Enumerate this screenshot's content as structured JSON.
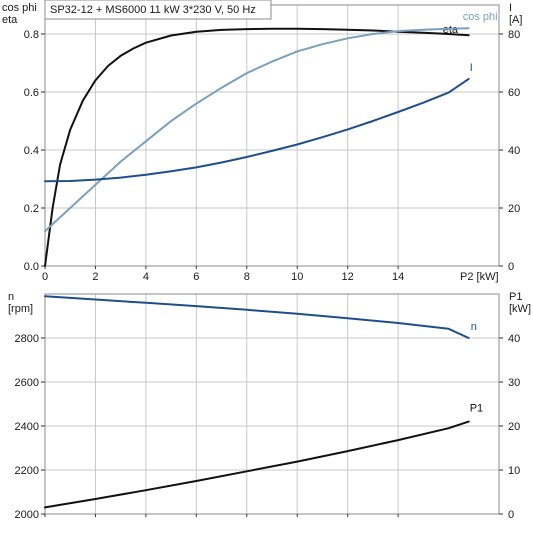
{
  "header": {
    "title": "SP32-12 + MS6000    11 kW    3*230 V, 50 Hz"
  },
  "chart_data": [
    {
      "type": "line",
      "panel": "top",
      "xlabel": "P2 [kW]",
      "xlim": [
        0,
        18
      ],
      "x_ticks": [
        0,
        2,
        4,
        6,
        8,
        10,
        12,
        14
      ],
      "left_axis": {
        "label_lines": [
          "cos phi",
          "eta"
        ],
        "lim": [
          0,
          0.9
        ],
        "ticks": [
          0.0,
          0.2,
          0.4,
          0.6,
          0.8
        ],
        "tick_labels": [
          "0.0",
          "0.2",
          "0.4",
          "0.6",
          "0.8"
        ]
      },
      "right_axis": {
        "label_lines": [
          "I",
          "[A]"
        ],
        "lim": [
          0,
          90
        ],
        "ticks": [
          0,
          20,
          40,
          60,
          80
        ],
        "tick_labels": [
          "0",
          "20",
          "40",
          "60",
          "80"
        ]
      },
      "grid": true,
      "series": [
        {
          "name": "eta",
          "axis": "left",
          "color": "#111111",
          "x": [
            0,
            0.3,
            0.6,
            1,
            1.5,
            2,
            2.5,
            3,
            3.5,
            4,
            5,
            6,
            7,
            8,
            9,
            10,
            11,
            12,
            13,
            14,
            15,
            16,
            16.8
          ],
          "y": [
            0,
            0.2,
            0.35,
            0.47,
            0.57,
            0.64,
            0.69,
            0.725,
            0.75,
            0.77,
            0.795,
            0.808,
            0.814,
            0.817,
            0.818,
            0.818,
            0.817,
            0.815,
            0.812,
            0.808,
            0.804,
            0.8,
            0.796
          ]
        },
        {
          "name": "cos phi",
          "axis": "left",
          "color": "#7a9fbf",
          "x": [
            0,
            1,
            2,
            3,
            4,
            5,
            6,
            7,
            8,
            9,
            10,
            11,
            12,
            13,
            14,
            15,
            16,
            16.8
          ],
          "y": [
            0.12,
            0.2,
            0.28,
            0.36,
            0.43,
            0.5,
            0.56,
            0.615,
            0.665,
            0.705,
            0.74,
            0.765,
            0.785,
            0.8,
            0.81,
            0.815,
            0.818,
            0.82
          ]
        },
        {
          "name": "I",
          "axis": "right",
          "color": "#1f4f8a",
          "x": [
            0,
            1,
            2,
            3,
            4,
            5,
            6,
            7,
            8,
            9,
            10,
            11,
            12,
            13,
            14,
            15,
            16,
            16.8
          ],
          "y": [
            29.2,
            29.3,
            29.8,
            30.5,
            31.5,
            32.7,
            34,
            35.7,
            37.6,
            39.7,
            41.9,
            44.4,
            47.1,
            50,
            53.1,
            56.3,
            59.8,
            64.5
          ]
        }
      ]
    },
    {
      "type": "line",
      "panel": "bottom",
      "xlim": [
        0,
        18
      ],
      "x_ticks": [
        0,
        2,
        4,
        6,
        8,
        10,
        12,
        14
      ],
      "left_axis": {
        "label_lines": [
          "n",
          "[rpm]"
        ],
        "lim": [
          2000,
          3000
        ],
        "ticks": [
          2000,
          2200,
          2400,
          2600,
          2800
        ],
        "tick_labels": [
          "2000",
          "2200",
          "2400",
          "2600",
          "2800"
        ]
      },
      "right_axis": {
        "label_lines": [
          "P1",
          "[kW]"
        ],
        "lim": [
          0,
          50
        ],
        "ticks": [
          0,
          10,
          20,
          30,
          40
        ],
        "tick_labels": [
          "0",
          "10",
          "20",
          "30",
          "40"
        ]
      },
      "grid": true,
      "series": [
        {
          "name": "n",
          "axis": "left",
          "color": "#1f4f8a",
          "x": [
            0,
            2,
            4,
            6,
            8,
            10,
            12,
            14,
            16,
            16.8
          ],
          "y": [
            2990,
            2975,
            2960,
            2945,
            2928,
            2910,
            2890,
            2868,
            2842,
            2800
          ]
        },
        {
          "name": "P1",
          "axis": "right",
          "color": "#111111",
          "x": [
            0,
            2,
            4,
            6,
            8,
            10,
            12,
            14,
            16,
            16.8
          ],
          "y": [
            1.5,
            3.4,
            5.4,
            7.5,
            9.7,
            11.9,
            14.3,
            16.8,
            19.5,
            21
          ]
        }
      ]
    }
  ]
}
